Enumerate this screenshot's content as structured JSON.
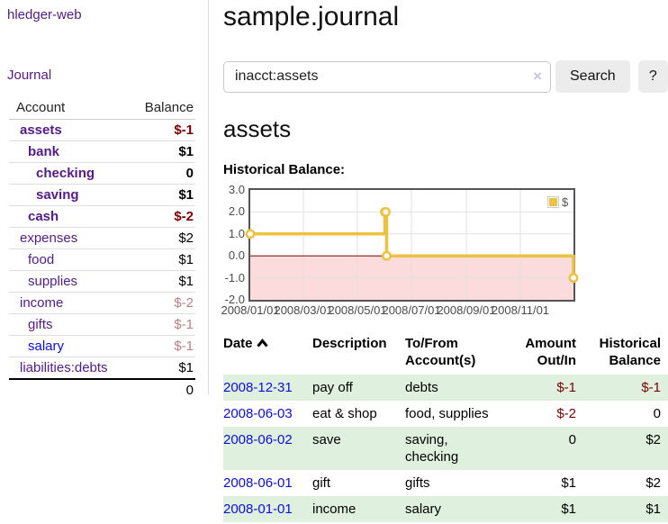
{
  "app": {
    "title": "hledger-web"
  },
  "sidebar": {
    "journal_link": "Journal",
    "accounts_header": {
      "account": "Account",
      "balance": "Balance"
    },
    "accounts": [
      {
        "name": "assets",
        "depth": 0,
        "bold": true,
        "link_color": "purple",
        "balance": "$-1",
        "balance_class": "neg-strong"
      },
      {
        "name": "bank",
        "depth": 1,
        "bold": true,
        "link_color": "purple",
        "balance": "$1",
        "balance_class": ""
      },
      {
        "name": "checking",
        "depth": 2,
        "bold": true,
        "link_color": "purple",
        "balance": "0",
        "balance_class": ""
      },
      {
        "name": "saving",
        "depth": 2,
        "bold": true,
        "link_color": "purple",
        "balance": "$1",
        "balance_class": ""
      },
      {
        "name": "cash",
        "depth": 1,
        "bold": true,
        "link_color": "purple",
        "balance": "$-2",
        "balance_class": "neg-strong"
      },
      {
        "name": "expenses",
        "depth": 0,
        "bold": false,
        "link_color": "purple",
        "balance": "$2",
        "balance_class": ""
      },
      {
        "name": "food",
        "depth": 1,
        "bold": false,
        "link_color": "purple",
        "balance": "$1",
        "balance_class": ""
      },
      {
        "name": "supplies",
        "depth": 1,
        "bold": false,
        "link_color": "purple",
        "balance": "$1",
        "balance_class": ""
      },
      {
        "name": "income",
        "depth": 0,
        "bold": false,
        "link_color": "purple",
        "balance": "$-2",
        "balance_class": "neg-muted"
      },
      {
        "name": "gifts",
        "depth": 1,
        "bold": false,
        "link_color": "purple",
        "balance": "$-1",
        "balance_class": "neg-muted"
      },
      {
        "name": "salary",
        "depth": 1,
        "bold": false,
        "link_color": "blue",
        "balance": "$-1",
        "balance_class": "neg-muted"
      },
      {
        "name": "liabilities:debts",
        "depth": 0,
        "bold": false,
        "link_color": "purple",
        "balance": "$1",
        "balance_class": ""
      }
    ],
    "total": "0"
  },
  "header": {
    "title": "sample.journal"
  },
  "search": {
    "value": "inacct:assets",
    "clear_icon": "×",
    "search_button": "Search",
    "help_button": "?"
  },
  "register": {
    "heading": "assets",
    "chart_label": "Historical Balance:",
    "table": {
      "headers": {
        "date": "Date",
        "description": "Description",
        "accounts": "To/From Account(s)",
        "amount": "Amount Out/In",
        "balance": "Historical Balance"
      },
      "rows": [
        {
          "date": "2008-12-31",
          "description": "pay off",
          "accounts": "debts",
          "amount": "$-1",
          "balance": "$-1",
          "amount_neg": true,
          "balance_neg": true
        },
        {
          "date": "2008-06-03",
          "description": "eat & shop",
          "accounts": "food, supplies",
          "amount": "$-2",
          "balance": "0",
          "amount_neg": true,
          "balance_neg": false
        },
        {
          "date": "2008-06-02",
          "description": "save",
          "accounts": "saving, checking",
          "amount": "0",
          "balance": "$2",
          "amount_neg": false,
          "balance_neg": false
        },
        {
          "date": "2008-06-01",
          "description": "gift",
          "accounts": "gifts",
          "amount": "$1",
          "balance": "$2",
          "amount_neg": false,
          "balance_neg": false
        },
        {
          "date": "2008-01-01",
          "description": "income",
          "accounts": "salary",
          "amount": "$1",
          "balance": "$1",
          "amount_neg": false,
          "balance_neg": false
        }
      ]
    }
  },
  "chart_data": {
    "type": "line",
    "title": "Historical Balance",
    "step": true,
    "series": [
      {
        "name": "$",
        "points": [
          [
            "2008-01-01",
            1
          ],
          [
            "2008-06-01",
            2
          ],
          [
            "2008-06-02",
            2
          ],
          [
            "2008-06-03",
            0
          ],
          [
            "2008-12-31",
            -1
          ]
        ]
      }
    ],
    "x_ticks": [
      "2008/01/01",
      "2008/03/01",
      "2008/05/01",
      "2008/07/01",
      "2008/09/01",
      "2008/11/01"
    ],
    "y_ticks": [
      "3.0",
      "2.0",
      "1.0",
      "0.0",
      "-1.0",
      "-2.0"
    ],
    "xlim": [
      "2008-01-01",
      "2008-12-31"
    ],
    "ylim": [
      -2,
      3
    ],
    "grid": true,
    "legend": {
      "position": "top-right",
      "label": "$"
    },
    "colors": {
      "line": "#edc240",
      "marker_fill": "#ffffff",
      "negative_region": "#fbdbdb",
      "zero_line": "#8b1a1a",
      "grid": "#e2e2e2",
      "border": "#545454",
      "tick_text": "#4a4a4a"
    }
  },
  "colors": {
    "link_purple": "#551a8b",
    "link_blue": "#0d0de0",
    "negative_strong": "#7f0000",
    "negative_muted": "#c08080",
    "row_stripe_green": "#dff0df"
  }
}
